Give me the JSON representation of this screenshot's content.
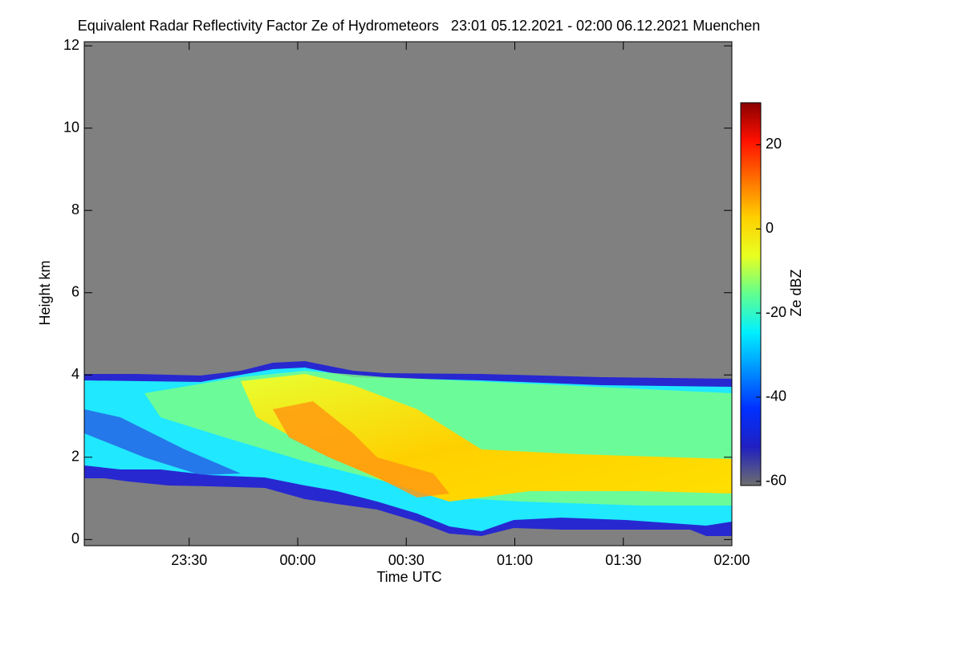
{
  "chart_data": {
    "type": "heatmap",
    "title": "Equivalent Radar Reflectivity Factor Ze of Hydrometeors   23:01 05.12.2021 - 02:00 06.12.2021 Muenchen",
    "x_label": "Time UTC",
    "y_label": "Height km",
    "xlim": [
      1381,
      1560
    ],
    "xticks": [
      {
        "value": 1410,
        "label": "23:30"
      },
      {
        "value": 1440,
        "label": "00:00"
      },
      {
        "value": 1470,
        "label": "00:30"
      },
      {
        "value": 1500,
        "label": "01:00"
      },
      {
        "value": 1530,
        "label": "01:30"
      },
      {
        "value": 1560,
        "label": "02:00"
      }
    ],
    "ylim": [
      -0.15,
      12.1
    ],
    "yticks": [
      0,
      2,
      4,
      6,
      8,
      10,
      12
    ],
    "colorbar": {
      "label": "Ze dBZ",
      "lim": [
        -61,
        30
      ],
      "ticks": [
        -60,
        -40,
        -20,
        0,
        20
      ],
      "colormap": [
        "#6e6e6e",
        "#2020c0",
        "#0030ff",
        "#0090ff",
        "#00f0ff",
        "#60ff90",
        "#e8ff20",
        "#ffd000",
        "#ff7000",
        "#ff1000",
        "#8a0000"
      ]
    },
    "background_color": "#808080"
  }
}
